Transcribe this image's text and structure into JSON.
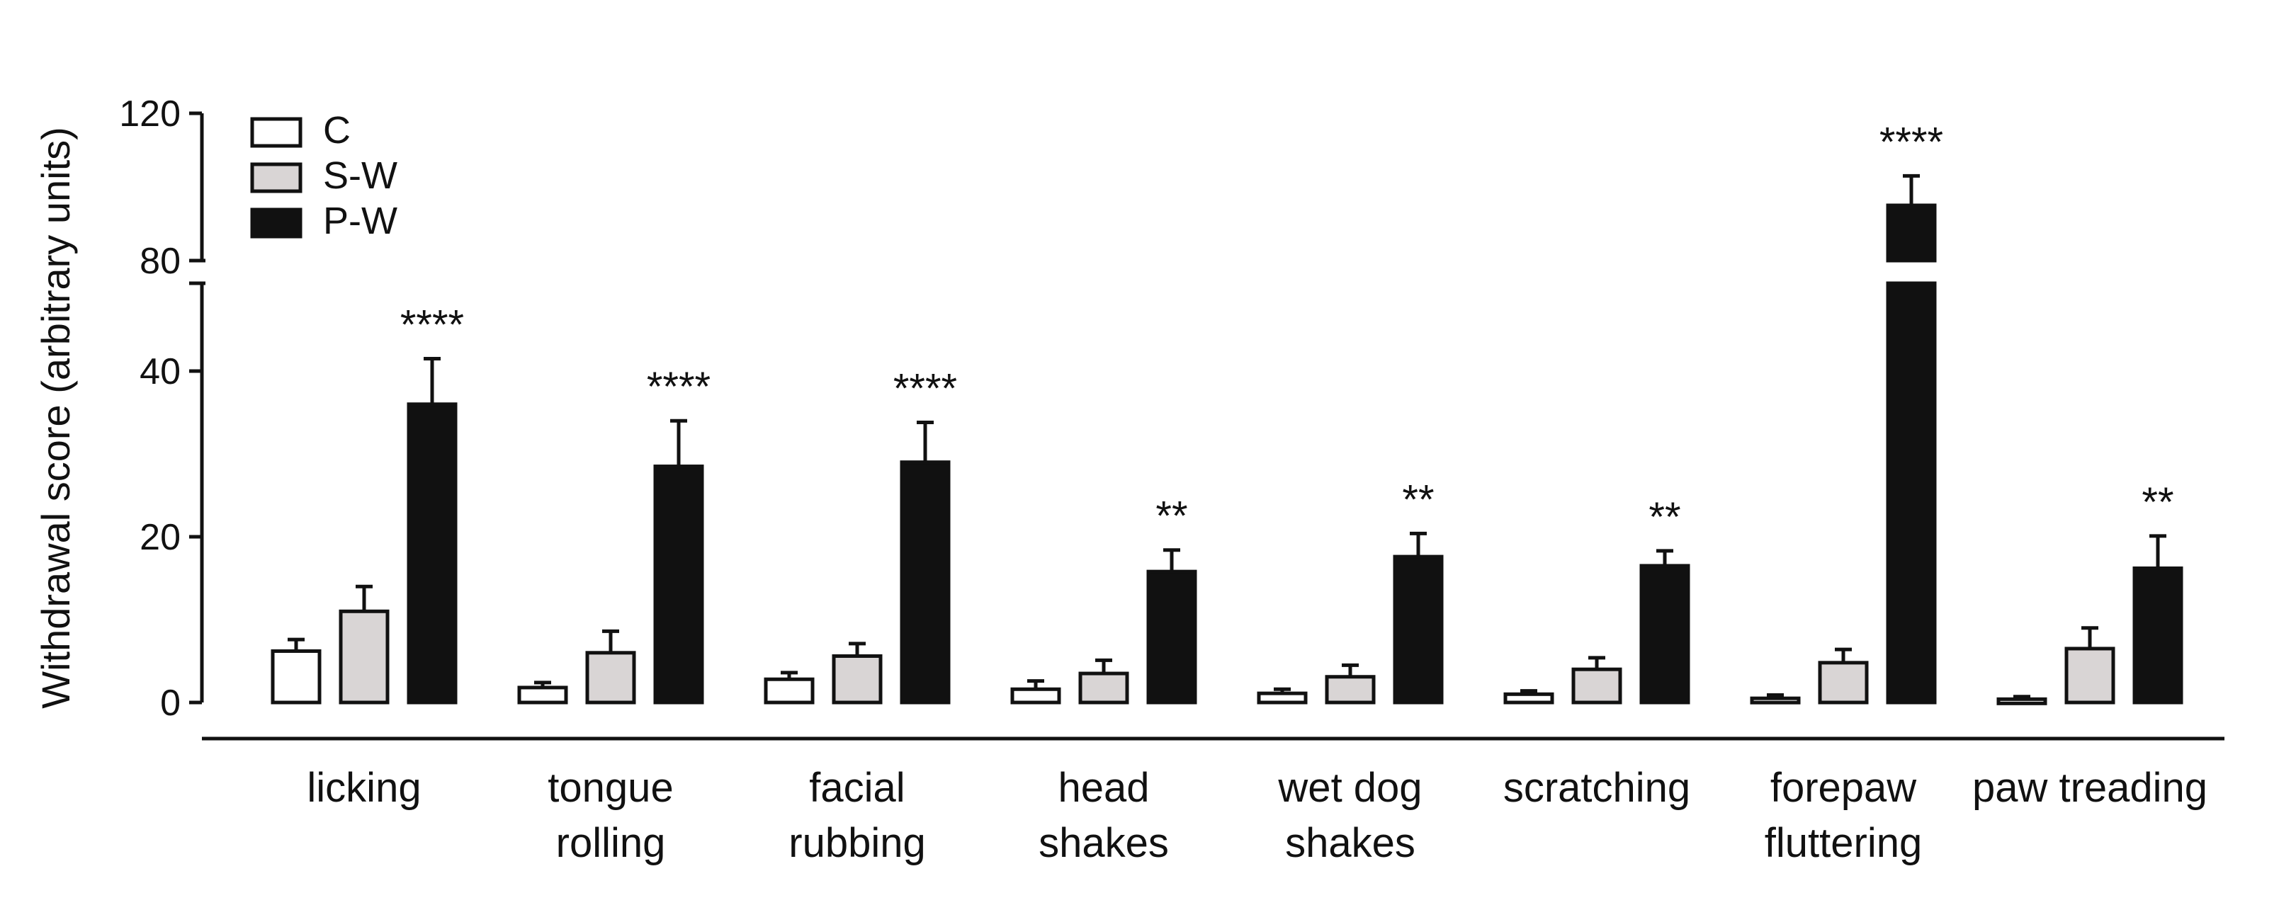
{
  "chart_data": {
    "type": "bar",
    "title": "",
    "ylabel": "Withdrawal  score (arbitrary units)",
    "xlabel": "",
    "y_axis_break": {
      "lower_segment": [
        0,
        50
      ],
      "upper_segment": [
        80,
        120
      ]
    },
    "y_ticks": [
      0,
      20,
      40,
      80,
      120
    ],
    "legend": {
      "placement": "top-left",
      "entries": [
        "C",
        "S-W",
        "P-W"
      ]
    },
    "categories": [
      [
        "licking"
      ],
      [
        "tongue",
        "rolling"
      ],
      [
        "facial",
        "rubbing"
      ],
      [
        "head",
        "shakes"
      ],
      [
        "wet dog",
        "shakes"
      ],
      [
        "scratching"
      ],
      [
        "forepaw",
        "fluttering"
      ],
      [
        "paw treading"
      ]
    ],
    "series": [
      {
        "name": "C",
        "color": "#ffffff",
        "values": [
          6.2,
          1.8,
          2.8,
          1.6,
          1.1,
          1.0,
          0.5,
          0.4
        ],
        "errors": [
          1.4,
          0.6,
          0.8,
          1.0,
          0.5,
          0.4,
          0.4,
          0.3
        ]
      },
      {
        "name": "S-W",
        "color": "#d9d5d5",
        "values": [
          11.0,
          6.0,
          5.6,
          3.5,
          3.1,
          4.0,
          4.8,
          6.5
        ],
        "errors": [
          3.0,
          2.6,
          1.5,
          1.6,
          1.4,
          1.4,
          1.6,
          2.5
        ]
      },
      {
        "name": "P-W",
        "color": "#111111",
        "values": [
          36.0,
          28.5,
          29.0,
          15.8,
          17.6,
          16.5,
          95.0,
          16.2
        ],
        "errors": [
          5.5,
          5.5,
          4.8,
          2.6,
          2.8,
          1.8,
          8.0,
          3.9
        ]
      }
    ],
    "annotations": [
      "****",
      "****",
      "****",
      "**",
      "**",
      "**",
      "****",
      "**"
    ],
    "grid": false
  }
}
